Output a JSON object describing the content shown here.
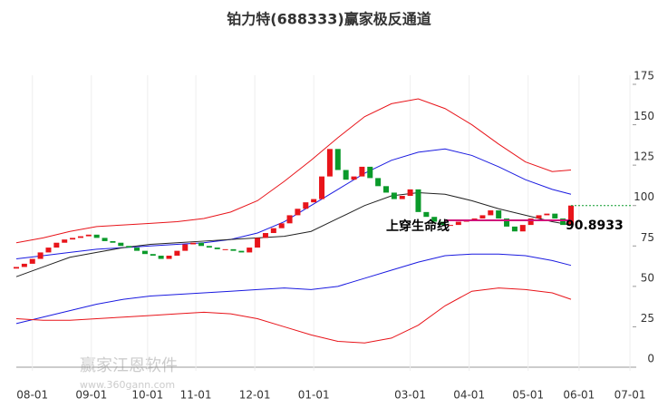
{
  "chart_data": {
    "type": "candlestick",
    "title": "铂力特(688333)赢家极反通道",
    "xlim": [
      0,
      230
    ],
    "ylim": [
      0,
      175
    ],
    "yticks": [
      0,
      25,
      50,
      75,
      100,
      125,
      150,
      175
    ],
    "xticks": [
      {
        "value": 6,
        "label": "08-01"
      },
      {
        "value": 28,
        "label": "09-01"
      },
      {
        "value": 49,
        "label": "10-01"
      },
      {
        "value": 67,
        "label": "11-01"
      },
      {
        "value": 89,
        "label": "12-01"
      },
      {
        "value": 111,
        "label": "01-01"
      },
      {
        "value": 147,
        "label": "03-01"
      },
      {
        "value": 169,
        "label": "04-01"
      },
      {
        "value": 191,
        "label": "05-01"
      },
      {
        "value": 210,
        "label": "06-01"
      },
      {
        "value": 229,
        "label": "07-01"
      }
    ],
    "candles": {
      "x": [
        0,
        3,
        6,
        9,
        12,
        15,
        18,
        21,
        24,
        27,
        30,
        33,
        36,
        39,
        42,
        45,
        48,
        51,
        54,
        57,
        60,
        63,
        66,
        69,
        72,
        75,
        78,
        81,
        84,
        87,
        90,
        93,
        96,
        99,
        102,
        105,
        108,
        111,
        114,
        117,
        120,
        123,
        126,
        129,
        132,
        135,
        138,
        141,
        144,
        147,
        150,
        153,
        156,
        159,
        162,
        165,
        168,
        171,
        174,
        177,
        180,
        183,
        186,
        189,
        192,
        195,
        198,
        201,
        204,
        207
      ],
      "open": [
        61,
        62,
        64,
        67,
        71,
        74,
        77,
        79,
        80,
        81,
        82,
        80,
        78,
        77,
        75,
        74,
        72,
        70,
        69,
        67,
        69,
        72,
        76,
        77,
        75,
        74,
        73,
        73,
        72,
        71,
        74,
        80,
        83,
        86,
        89,
        94,
        98,
        102,
        104,
        118,
        135,
        122,
        116,
        118,
        124,
        117,
        112,
        108,
        104,
        106,
        110,
        96,
        93,
        90,
        88,
        88,
        90,
        91,
        92,
        94,
        97,
        92,
        87,
        84,
        88,
        92,
        94,
        95,
        92,
        88
      ],
      "close": [
        62,
        64,
        67,
        71,
        74,
        77,
        79,
        80,
        81,
        82,
        80,
        78,
        77,
        75,
        74,
        72,
        70,
        69,
        67,
        69,
        72,
        76,
        77,
        75,
        74,
        73,
        73,
        72,
        71,
        74,
        80,
        83,
        86,
        89,
        94,
        98,
        102,
        104,
        118,
        135,
        122,
        116,
        118,
        124,
        117,
        112,
        108,
        104,
        106,
        110,
        96,
        93,
        90,
        88,
        88,
        90,
        91,
        92,
        94,
        97,
        92,
        87,
        84,
        88,
        92,
        94,
        95,
        92,
        88,
        100
      ],
      "up_color": "#e8141a",
      "down_color": "#0a9a2a"
    },
    "lines_x": [
      0,
      10,
      20,
      30,
      40,
      50,
      60,
      70,
      80,
      90,
      100,
      110,
      120,
      130,
      140,
      150,
      160,
      170,
      180,
      190,
      200,
      207
    ],
    "series": [
      {
        "color": "#e8141a",
        "values": [
          77,
          80,
          84,
          87,
          88,
          89,
          90,
          92,
          96,
          103,
          115,
          128,
          142,
          155,
          163,
          166,
          160,
          150,
          138,
          127,
          121,
          122
        ]
      },
      {
        "color": "#1a1ae0",
        "values": [
          67,
          69,
          71,
          73,
          74,
          75,
          76,
          77,
          79,
          83,
          90,
          100,
          110,
          120,
          128,
          133,
          135,
          131,
          124,
          116,
          110,
          107
        ]
      },
      {
        "color": "#222222",
        "values": [
          56,
          62,
          68,
          71,
          74,
          76,
          77,
          78,
          79,
          80,
          81,
          84,
          92,
          100,
          106,
          108,
          107,
          103,
          98,
          94,
          90,
          88
        ]
      },
      {
        "color": "#1a1ae0",
        "values": [
          27,
          31,
          35,
          39,
          42,
          44,
          45,
          46,
          47,
          48,
          49,
          48,
          50,
          55,
          60,
          65,
          69,
          70,
          70,
          69,
          66,
          63
        ]
      },
      {
        "color": "#e8141a",
        "values": [
          30,
          29,
          29,
          30,
          31,
          32,
          33,
          34,
          33,
          30,
          25,
          20,
          16,
          15,
          18,
          26,
          38,
          47,
          49,
          48,
          46,
          42
        ]
      }
    ],
    "level_line": {
      "value": 90.8933,
      "label": "90.8933",
      "x": [
        160,
        207
      ],
      "color": "#d0107a"
    },
    "ref_line": {
      "value": 100,
      "x": [
        207,
        230
      ],
      "color": "#0a9a2a"
    },
    "annotation": {
      "text": "上穿生命线",
      "x": 160,
      "y": 87
    },
    "watermark": {
      "name": "赢家江恩软件",
      "url": "www.360gann.com"
    }
  }
}
